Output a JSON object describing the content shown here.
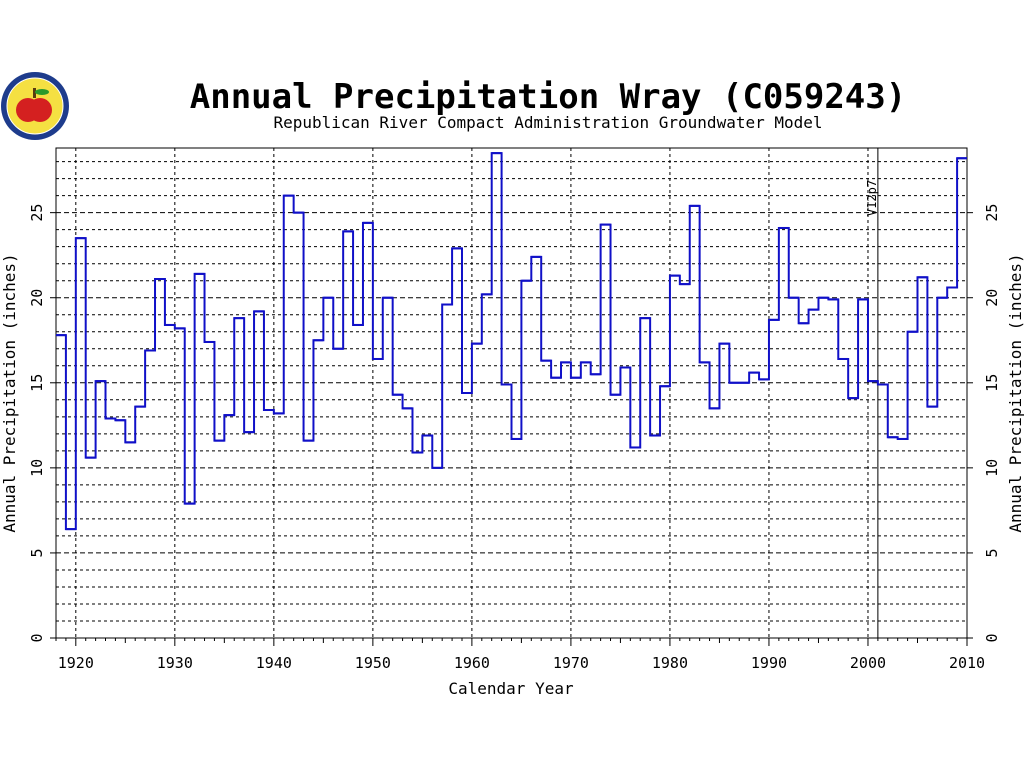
{
  "chart_data": {
    "type": "line",
    "style": "step",
    "title": "Annual Precipitation Wray (C059243)",
    "subtitle": "Republican River Compact Administration Groundwater Model",
    "xlabel": "Calendar Year",
    "ylabel": "Annual Precipitation (inches)",
    "xlim": [
      1918,
      2010
    ],
    "ylim": [
      0,
      28.8
    ],
    "x_ticks": [
      1920,
      1930,
      1940,
      1950,
      1960,
      1970,
      1980,
      1990,
      2000,
      2010
    ],
    "y_ticks": [
      0,
      5,
      10,
      15,
      20,
      25
    ],
    "grid": true,
    "line_color": "#1010c8",
    "annotation": {
      "text": "V12p7",
      "x": 2001
    },
    "series": [
      {
        "x": [
          1918,
          1919,
          1920,
          1921,
          1922,
          1923,
          1924,
          1925,
          1926,
          1927,
          1928,
          1929,
          1930,
          1931,
          1932,
          1933,
          1934,
          1935,
          1936,
          1937,
          1938,
          1939,
          1940,
          1941,
          1942,
          1943,
          1944,
          1945,
          1946,
          1947,
          1948,
          1949,
          1950,
          1951,
          1952,
          1953,
          1954,
          1955,
          1956,
          1957,
          1958,
          1959,
          1960,
          1961,
          1962,
          1963,
          1964,
          1965,
          1966,
          1967,
          1968,
          1969,
          1970,
          1971,
          1972,
          1973,
          1974,
          1975,
          1976,
          1977,
          1978,
          1979,
          1980,
          1981,
          1982,
          1983,
          1984,
          1985,
          1986,
          1987,
          1988,
          1989,
          1990,
          1991,
          1992,
          1993,
          1994,
          1995,
          1996,
          1997,
          1998,
          1999,
          2000,
          2001,
          2002,
          2003,
          2004,
          2005,
          2006,
          2007,
          2008,
          2009
        ],
        "values": [
          17.8,
          6.4,
          23.5,
          10.6,
          15.1,
          12.9,
          12.8,
          11.5,
          13.6,
          16.9,
          21.1,
          18.4,
          18.2,
          7.9,
          21.4,
          17.4,
          11.6,
          13.1,
          18.8,
          12.1,
          19.2,
          13.4,
          13.2,
          26.0,
          25.0,
          11.6,
          17.5,
          20.0,
          17.0,
          23.9,
          18.4,
          24.4,
          16.4,
          20.0,
          14.3,
          13.5,
          10.9,
          11.9,
          10.0,
          19.6,
          22.9,
          14.4,
          17.3,
          20.2,
          28.5,
          14.9,
          11.7,
          21.0,
          22.4,
          16.3,
          15.3,
          16.2,
          15.3,
          16.2,
          15.5,
          24.3,
          14.3,
          15.9,
          11.2,
          18.8,
          11.9,
          14.8,
          21.3,
          20.8,
          25.4,
          16.2,
          13.5,
          17.3,
          15.0,
          15.0,
          15.6,
          15.2,
          18.7,
          24.1,
          20.0,
          18.5,
          19.3,
          20.0,
          19.9,
          16.4,
          14.1,
          19.9,
          15.1,
          14.9,
          11.8,
          11.7,
          18.0,
          21.2,
          13.6,
          20.0,
          20.6,
          28.2
        ]
      }
    ]
  }
}
